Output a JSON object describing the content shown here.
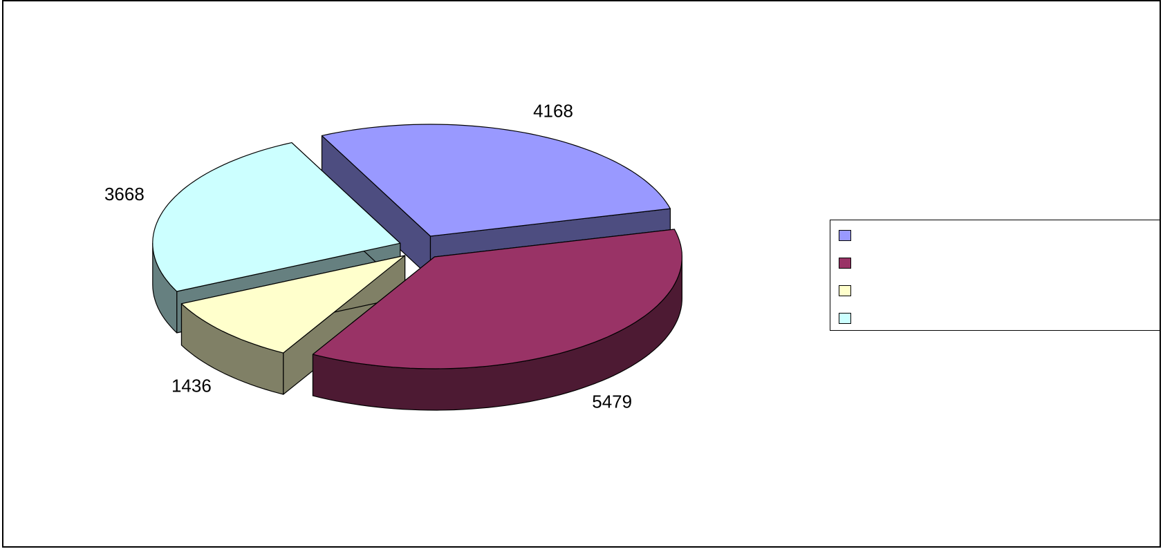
{
  "chart_data": {
    "type": "pie",
    "style": "3d-exploded",
    "title": "",
    "values": [
      4168,
      5479,
      1436,
      3668
    ],
    "data_labels": [
      "4168",
      "5479",
      "1436",
      "3668"
    ],
    "colors": [
      "#9999FF",
      "#993366",
      "#FFFFCC",
      "#CCFFFF"
    ],
    "side_colors": [
      "#4D4D80",
      "#4D1A33",
      "#808066",
      "#668080"
    ],
    "legend": {
      "placement": "right",
      "entries": [
        "",
        "",
        "",
        ""
      ]
    }
  }
}
